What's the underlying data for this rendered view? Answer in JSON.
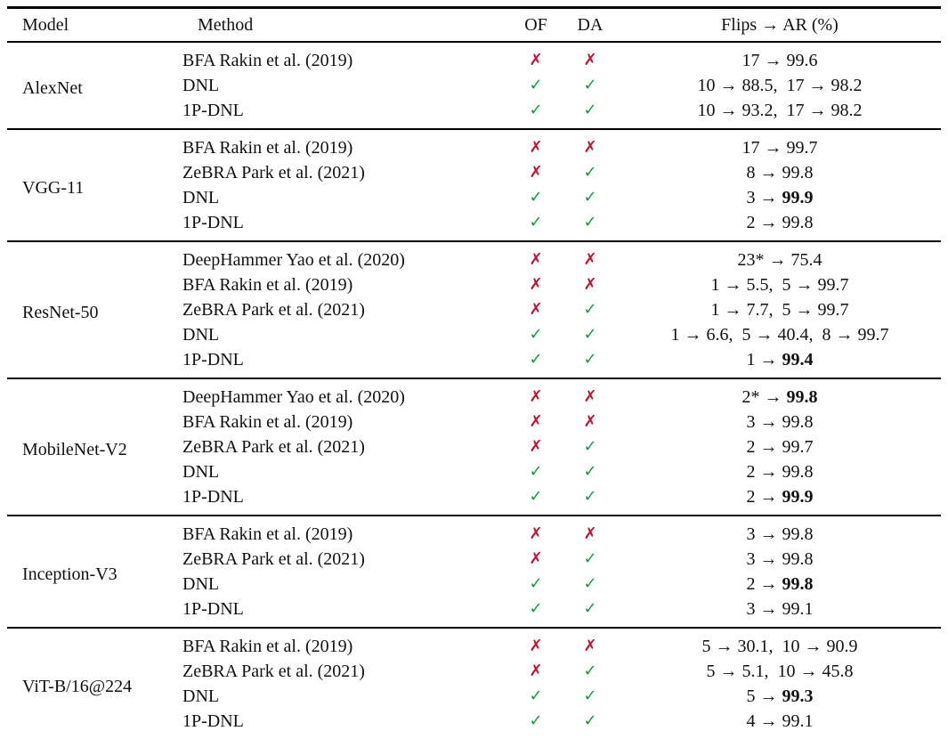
{
  "table": {
    "headers": [
      "Model",
      "Method",
      "OF",
      "DA",
      "Flips → AR (%)"
    ],
    "marks": {
      "check_glyph": "✓",
      "cross_glyph": "✗",
      "check_color": "#189b3c",
      "cross_color": "#c0112f",
      "arrow": "→"
    },
    "groups": [
      {
        "model": "AlexNet",
        "rows": [
          {
            "method": "BFA Rakin et al. (2019)",
            "of": false,
            "da": false,
            "flips": [
              {
                "flip": "17",
                "ar": "99.6",
                "bold": false
              }
            ]
          },
          {
            "method": "DNL",
            "of": true,
            "da": true,
            "flips": [
              {
                "flip": "10",
                "ar": "88.5",
                "bold": false
              },
              {
                "flip": "17",
                "ar": "98.2",
                "bold": false
              }
            ]
          },
          {
            "method": "1P-DNL",
            "of": true,
            "da": true,
            "flips": [
              {
                "flip": "10",
                "ar": "93.2",
                "bold": false
              },
              {
                "flip": "17",
                "ar": "98.2",
                "bold": false
              }
            ]
          }
        ]
      },
      {
        "model": "VGG-11",
        "rows": [
          {
            "method": "BFA Rakin et al. (2019)",
            "of": false,
            "da": false,
            "flips": [
              {
                "flip": "17",
                "ar": "99.7",
                "bold": false
              }
            ]
          },
          {
            "method": "ZeBRA Park et al. (2021)",
            "of": false,
            "da": true,
            "flips": [
              {
                "flip": "8",
                "ar": "99.8",
                "bold": false
              }
            ]
          },
          {
            "method": "DNL",
            "of": true,
            "da": true,
            "flips": [
              {
                "flip": "3",
                "ar": "99.9",
                "bold": true
              }
            ]
          },
          {
            "method": "1P-DNL",
            "of": true,
            "da": true,
            "flips": [
              {
                "flip": "2",
                "ar": "99.8",
                "bold": false
              }
            ]
          }
        ]
      },
      {
        "model": "ResNet-50",
        "rows": [
          {
            "method": "DeepHammer Yao et al. (2020)",
            "of": false,
            "da": false,
            "flips": [
              {
                "flip": "23*",
                "ar": "75.4",
                "bold": false
              }
            ]
          },
          {
            "method": "BFA Rakin et al. (2019)",
            "of": false,
            "da": false,
            "flips": [
              {
                "flip": "1",
                "ar": "5.5",
                "bold": false
              },
              {
                "flip": "5",
                "ar": "99.7",
                "bold": false
              }
            ]
          },
          {
            "method": "ZeBRA Park et al. (2021)",
            "of": false,
            "da": true,
            "flips": [
              {
                "flip": "1",
                "ar": "7.7",
                "bold": false
              },
              {
                "flip": "5",
                "ar": "99.7",
                "bold": false
              }
            ]
          },
          {
            "method": "DNL",
            "of": true,
            "da": true,
            "flips": [
              {
                "flip": "1",
                "ar": "6.6",
                "bold": false
              },
              {
                "flip": "5",
                "ar": "40.4",
                "bold": false
              },
              {
                "flip": "8",
                "ar": "99.7",
                "bold": false
              }
            ]
          },
          {
            "method": "1P-DNL",
            "of": true,
            "da": true,
            "flips": [
              {
                "flip": "1",
                "ar": "99.4",
                "bold": true
              }
            ]
          }
        ]
      },
      {
        "model": "MobileNet-V2",
        "rows": [
          {
            "method": "DeepHammer Yao et al. (2020)",
            "of": false,
            "da": false,
            "flips": [
              {
                "flip": "2*",
                "ar": "99.8",
                "bold": true
              }
            ]
          },
          {
            "method": "BFA Rakin et al. (2019)",
            "of": false,
            "da": false,
            "flips": [
              {
                "flip": "3",
                "ar": "99.8",
                "bold": false
              }
            ]
          },
          {
            "method": "ZeBRA Park et al. (2021)",
            "of": false,
            "da": true,
            "flips": [
              {
                "flip": "2",
                "ar": "99.7",
                "bold": false
              }
            ]
          },
          {
            "method": "DNL",
            "of": true,
            "da": true,
            "flips": [
              {
                "flip": "2",
                "ar": "99.8",
                "bold": false
              }
            ]
          },
          {
            "method": "1P-DNL",
            "of": true,
            "da": true,
            "flips": [
              {
                "flip": "2",
                "ar": "99.9",
                "bold": true
              }
            ]
          }
        ]
      },
      {
        "model": "Inception-V3",
        "rows": [
          {
            "method": "BFA Rakin et al. (2019)",
            "of": false,
            "da": false,
            "flips": [
              {
                "flip": "3",
                "ar": "99.8",
                "bold": false
              }
            ]
          },
          {
            "method": "ZeBRA Park et al. (2021)",
            "of": false,
            "da": true,
            "flips": [
              {
                "flip": "3",
                "ar": "99.8",
                "bold": false
              }
            ]
          },
          {
            "method": "DNL",
            "of": true,
            "da": true,
            "flips": [
              {
                "flip": "2",
                "ar": "99.8",
                "bold": true
              }
            ]
          },
          {
            "method": "1P-DNL",
            "of": true,
            "da": true,
            "flips": [
              {
                "flip": "3",
                "ar": "99.1",
                "bold": false
              }
            ]
          }
        ]
      },
      {
        "model": "ViT-B/16@224",
        "rows": [
          {
            "method": "BFA Rakin et al. (2019)",
            "of": false,
            "da": false,
            "flips": [
              {
                "flip": "5",
                "ar": "30.1",
                "bold": false
              },
              {
                "flip": "10",
                "ar": "90.9",
                "bold": false
              }
            ]
          },
          {
            "method": "ZeBRA Park et al. (2021)",
            "of": false,
            "da": true,
            "flips": [
              {
                "flip": "5",
                "ar": "5.1",
                "bold": false
              },
              {
                "flip": "10",
                "ar": "45.8",
                "bold": false
              }
            ]
          },
          {
            "method": "DNL",
            "of": true,
            "da": true,
            "flips": [
              {
                "flip": "5",
                "ar": "99.3",
                "bold": true
              }
            ]
          },
          {
            "method": "1P-DNL",
            "of": true,
            "da": true,
            "flips": [
              {
                "flip": "4",
                "ar": "99.1",
                "bold": false
              }
            ]
          }
        ]
      }
    ]
  }
}
